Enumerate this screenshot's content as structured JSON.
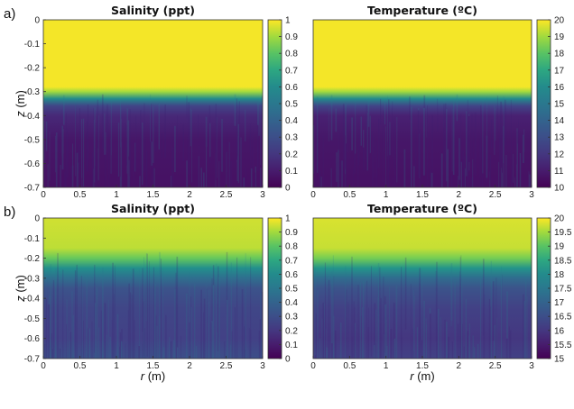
{
  "chart_data": [
    {
      "type": "heatmap",
      "panel": "a)",
      "title": "Salinity (ppt)",
      "xlabel": "",
      "ylabel_var": "z",
      "ylabel_unit": " (m)",
      "xlim": [
        0,
        3
      ],
      "ylim": [
        -0.7,
        0
      ],
      "x_ticks": [
        "0",
        "0.5",
        "1",
        "1.5",
        "2",
        "2.5",
        "3"
      ],
      "y_ticks": [
        "0",
        "-0.1",
        "-0.2",
        "-0.3",
        "-0.4",
        "-0.5",
        "-0.6",
        "-0.7"
      ],
      "colorbar": {
        "range": [
          0,
          1
        ],
        "ticks": [
          "0",
          "0.1",
          "0.2",
          "0.3",
          "0.4",
          "0.5",
          "0.6",
          "0.7",
          "0.8",
          "0.9",
          "1"
        ]
      },
      "profile": {
        "depth": [
          0,
          -0.28,
          -0.3,
          -0.33,
          -0.36,
          -0.4,
          -0.5,
          -0.7
        ],
        "value": [
          0.99,
          0.99,
          0.9,
          0.6,
          0.25,
          0.15,
          0.08,
          0.06
        ]
      }
    },
    {
      "type": "heatmap",
      "panel": "",
      "title": "Temperature (ºC)",
      "xlabel": "",
      "xlim": [
        0,
        3
      ],
      "ylim": [
        -0.7,
        0
      ],
      "x_ticks": [
        "0",
        "0.5",
        "1",
        "1.5",
        "2",
        "2.5",
        "3"
      ],
      "colorbar": {
        "range": [
          10,
          20
        ],
        "ticks": [
          "10",
          "11",
          "12",
          "13",
          "14",
          "15",
          "16",
          "17",
          "18",
          "19",
          "20"
        ]
      },
      "profile": {
        "depth": [
          0,
          -0.28,
          -0.3,
          -0.33,
          -0.36,
          -0.4,
          -0.5,
          -0.7
        ],
        "value": [
          19.9,
          19.9,
          19.0,
          16.0,
          12.5,
          11.2,
          10.8,
          10.6
        ]
      }
    },
    {
      "type": "heatmap",
      "panel": "b)",
      "title": "Salinity (ppt)",
      "xlabel_var": "r",
      "xlabel_unit": " (m)",
      "ylabel_var": "z",
      "ylabel_unit": " (m)",
      "xlim": [
        0,
        3
      ],
      "ylim": [
        -0.7,
        0
      ],
      "x_ticks": [
        "0",
        "0.5",
        "1",
        "1.5",
        "2",
        "2.5",
        "3"
      ],
      "y_ticks": [
        "0",
        "-0.1",
        "-0.2",
        "-0.3",
        "-0.4",
        "-0.5",
        "-0.6",
        "-0.7"
      ],
      "colorbar": {
        "range": [
          0,
          1
        ],
        "ticks": [
          "0",
          "0.1",
          "0.2",
          "0.3",
          "0.4",
          "0.5",
          "0.6",
          "0.7",
          "0.8",
          "0.9",
          "1"
        ]
      },
      "profile": {
        "depth": [
          0,
          -0.15,
          -0.2,
          -0.25,
          -0.3,
          -0.35,
          -0.45,
          -0.6,
          -0.7
        ],
        "value": [
          0.95,
          0.93,
          0.82,
          0.62,
          0.45,
          0.32,
          0.26,
          0.24,
          0.3
        ]
      }
    },
    {
      "type": "heatmap",
      "panel": "",
      "title": "Temperature (ºC)",
      "xlabel_var": "r",
      "xlabel_unit": " (m)",
      "xlim": [
        0,
        3
      ],
      "ylim": [
        -0.7,
        0
      ],
      "x_ticks": [
        "0",
        "0.5",
        "1",
        "1.5",
        "2",
        "2.5",
        "3"
      ],
      "colorbar": {
        "range": [
          15,
          20
        ],
        "ticks": [
          "15",
          "15.5",
          "16",
          "16.5",
          "17",
          "17.5",
          "18",
          "18.5",
          "19",
          "19.5",
          "20"
        ]
      },
      "profile": {
        "depth": [
          0,
          -0.15,
          -0.2,
          -0.25,
          -0.3,
          -0.35,
          -0.45,
          -0.6,
          -0.7
        ],
        "value": [
          19.8,
          19.7,
          19.2,
          18.2,
          17.2,
          16.6,
          16.2,
          16.0,
          16.2
        ]
      }
    }
  ]
}
